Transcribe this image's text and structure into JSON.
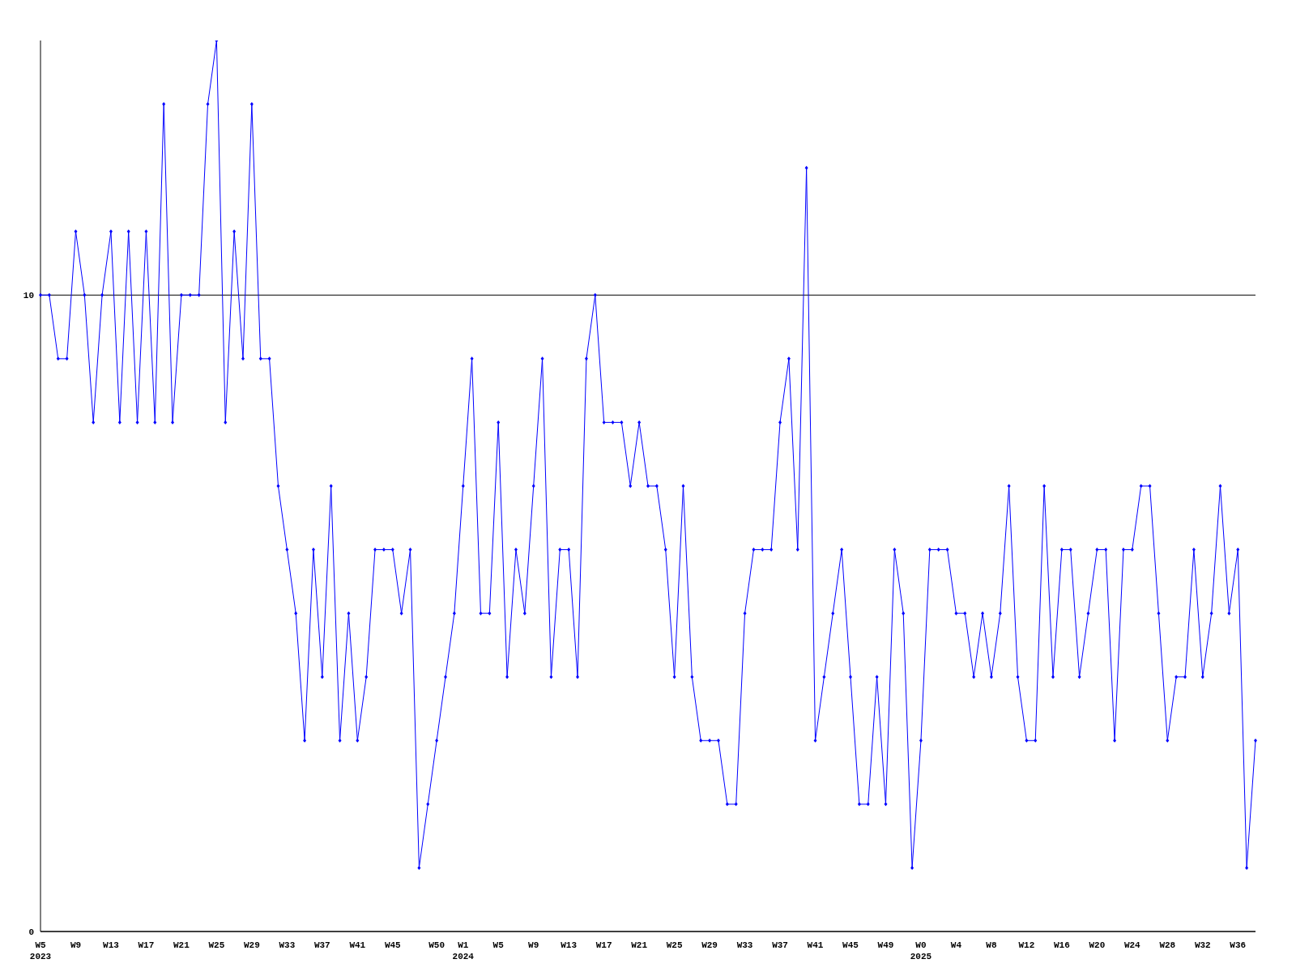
{
  "chart_data": {
    "type": "line",
    "categories": [
      "W5\n2023",
      null,
      null,
      null,
      "W9",
      null,
      null,
      null,
      "W13",
      null,
      null,
      null,
      "W17",
      null,
      null,
      null,
      "W21",
      null,
      null,
      null,
      "W25",
      null,
      null,
      null,
      "W29",
      null,
      null,
      null,
      "W33",
      null,
      null,
      null,
      "W37",
      null,
      null,
      null,
      "W41",
      null,
      null,
      null,
      "W45",
      null,
      null,
      null,
      null,
      "W50",
      null,
      null,
      "W1\n2024",
      null,
      null,
      null,
      "W5",
      null,
      null,
      null,
      "W9",
      null,
      null,
      null,
      "W13",
      null,
      null,
      null,
      "W17",
      null,
      null,
      null,
      "W21",
      null,
      null,
      null,
      "W25",
      null,
      null,
      null,
      "W29",
      null,
      null,
      null,
      "W33",
      null,
      null,
      null,
      "W37",
      null,
      null,
      null,
      "W41",
      null,
      null,
      null,
      "W45",
      null,
      null,
      null,
      "W49",
      null,
      null,
      null,
      "W0\n2025",
      null,
      null,
      null,
      "W4",
      null,
      null,
      null,
      "W8",
      null,
      null,
      null,
      "W12",
      null,
      null,
      null,
      "W16",
      null,
      null,
      null,
      "W20",
      null,
      null,
      null,
      "W24",
      null,
      null,
      null,
      "W28",
      null,
      null,
      null,
      "W32",
      null,
      null,
      null,
      "W36",
      null,
      null
    ],
    "series": [
      {
        "color": "#0000ff",
        "values": [
          10,
          10,
          9,
          9,
          11,
          10,
          8,
          10,
          11,
          8,
          11,
          8,
          11,
          8,
          13,
          8,
          10,
          10,
          10,
          13,
          14,
          8,
          11,
          9,
          13,
          9,
          9,
          7,
          6,
          5,
          3,
          6,
          4,
          7,
          3,
          5,
          3,
          4,
          6,
          6,
          6,
          5,
          6,
          1,
          2,
          3,
          4,
          5,
          7,
          9,
          5,
          5,
          8,
          4,
          6,
          5,
          7,
          9,
          4,
          6,
          6,
          4,
          9,
          10,
          8,
          8,
          8,
          7,
          8,
          7,
          7,
          6,
          4,
          7,
          4,
          3,
          3,
          3,
          2,
          2,
          5,
          6,
          6,
          6,
          8,
          9,
          6,
          12,
          3,
          4,
          5,
          6,
          4,
          2,
          2,
          4,
          2,
          6,
          5,
          1,
          3,
          6,
          6,
          6,
          5,
          5,
          4,
          5,
          4,
          5,
          7,
          4,
          3,
          3,
          7,
          4,
          6,
          6,
          4,
          5,
          6,
          6,
          3,
          6,
          6,
          7,
          7,
          5,
          3,
          4,
          4,
          6,
          4,
          5,
          7,
          5,
          6,
          1,
          3
        ]
      }
    ],
    "ylim": [
      0,
      14
    ],
    "yticks": [
      0,
      10
    ],
    "grid": "y",
    "marker": "diamond",
    "line_style": "solid"
  }
}
